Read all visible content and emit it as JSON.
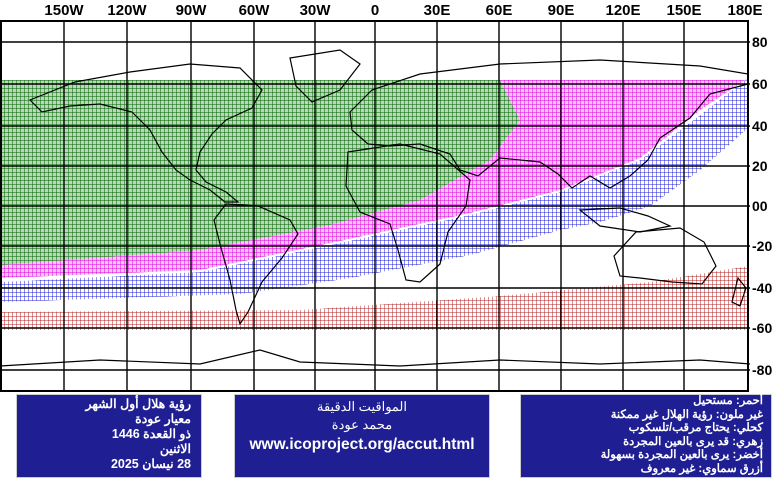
{
  "map": {
    "lon_labels": [
      "150W",
      "120W",
      "90W",
      "60W",
      "30W",
      "0",
      "30E",
      "60E",
      "90E",
      "120E",
      "150E",
      "180E"
    ],
    "lat_labels": [
      "80",
      "60",
      "40",
      "20",
      "00",
      "-20",
      "-40",
      "-60",
      "-80"
    ],
    "zones": [
      {
        "name": "green",
        "color": "#006400"
      },
      {
        "name": "magenta",
        "color": "#e000e0"
      },
      {
        "name": "blue",
        "color": "#2020d0"
      },
      {
        "name": "red",
        "color": "#b02020"
      }
    ]
  },
  "title_panel": {
    "line1": "رؤية هلال أول الشهر",
    "line2": "معيار عودة",
    "line3": "ذو القعدة 1446",
    "line4": "الاثنين",
    "line5": "28 نيسان 2025"
  },
  "credit_panel": {
    "line1": "المواقيت الدقيقة",
    "line2": "محمد عودة",
    "url": "www.icoproject.org/accut.html"
  },
  "legend_panel": {
    "items": [
      "أحمر: مستحيل",
      "غير ملون: رؤية الهلال غير ممكنة",
      "كحلي: يحتاج مرقب/تلسكوب",
      "زهري: قد يرى بالعين المجردة",
      "أخضر: يرى بالعين المجردة بسهولة",
      "أزرق سماوي: غير معروف"
    ]
  }
}
